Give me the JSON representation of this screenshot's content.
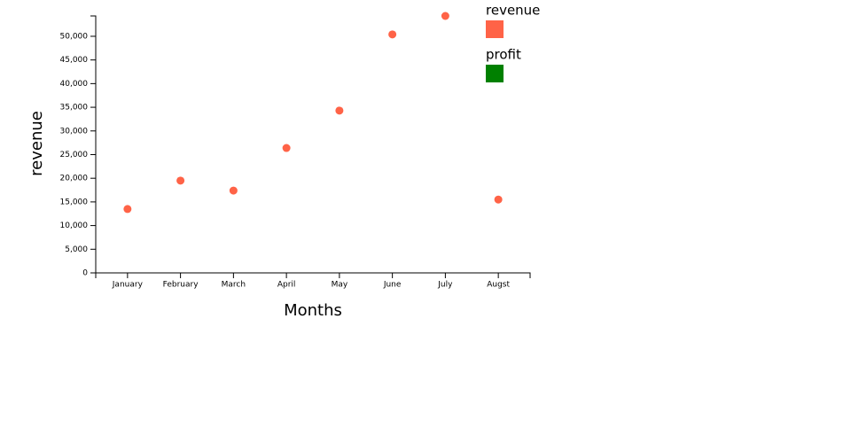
{
  "chart_data": {
    "type": "scatter",
    "x_label": "Months",
    "y_label": "revenue",
    "categories": [
      "January",
      "February",
      "March",
      "April",
      "May",
      "June",
      "July",
      "Augst"
    ],
    "series": [
      {
        "name": "revenue",
        "color": "#ff6347",
        "values": [
          13500,
          19500,
          17400,
          26400,
          34300,
          50400,
          54300,
          15500
        ]
      }
    ],
    "legend": [
      {
        "name": "revenue",
        "color": "#ff6347"
      },
      {
        "name": "profit",
        "color": "#008000"
      }
    ],
    "ylim": [
      0,
      54300
    ],
    "yticks": [
      0,
      {
        "value": 5000,
        "label": "5,000"
      },
      {
        "value": 10000,
        "label": "10,000"
      },
      {
        "value": 15000,
        "label": "15,000"
      },
      {
        "value": 20000,
        "label": "20,000"
      },
      {
        "value": 25000,
        "label": "25,000"
      },
      {
        "value": 30000,
        "label": "30,000"
      },
      {
        "value": 35000,
        "label": "35,000"
      },
      {
        "value": 40000,
        "label": "40,000"
      },
      {
        "value": 45000,
        "label": "45,000"
      },
      {
        "value": 50000,
        "label": "50,000"
      }
    ]
  }
}
